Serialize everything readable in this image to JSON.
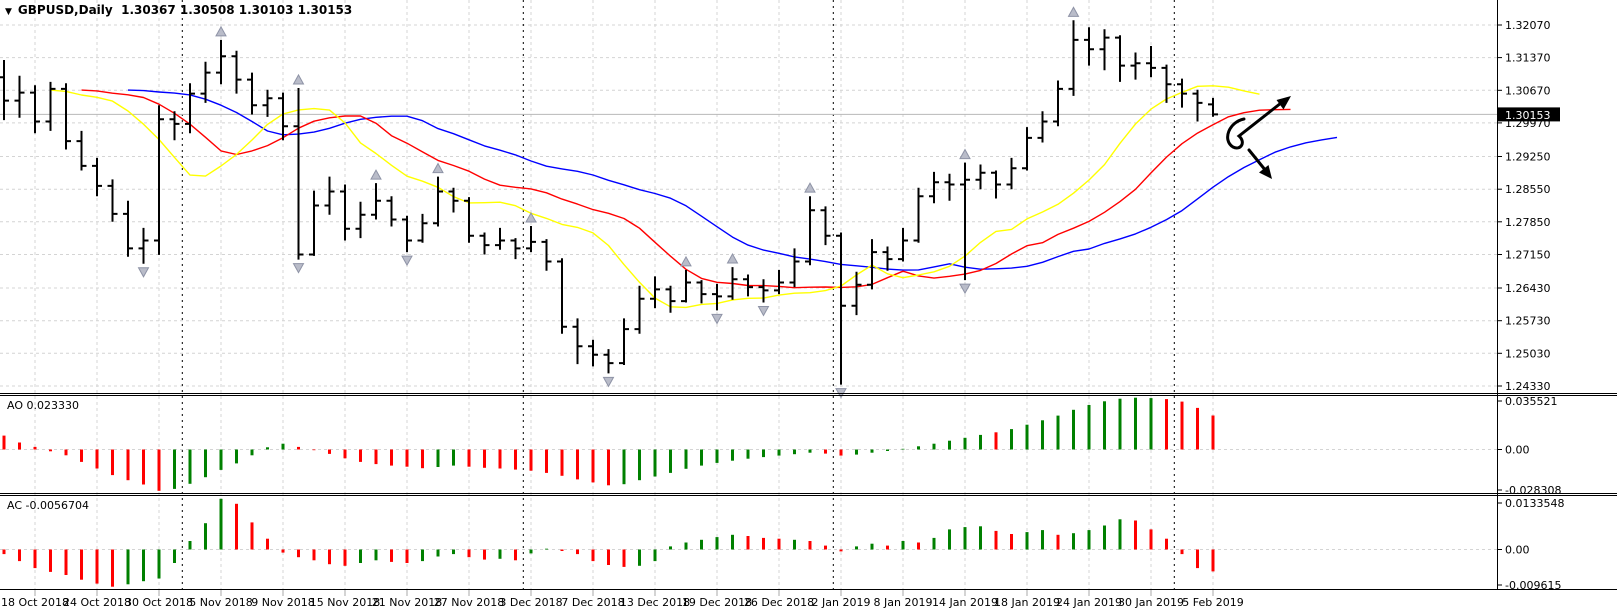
{
  "window": {
    "dropdown_icon": "▼",
    "symbol_period": "GBPUSD,Daily",
    "ohlc_text": "1.30367 1.30508 1.30103 1.30153"
  },
  "colors": {
    "background": "#ffffff",
    "bar": "#000000",
    "grid": "#d4d4d4",
    "month_line": "#000000",
    "current_price_line": "#b8b8b8",
    "badge_bg": "#000000",
    "badge_text": "#ffffff",
    "hist_up": "#008000",
    "hist_down": "#ff0000",
    "fractal": "#b9bcc9",
    "annotation": "#000000"
  },
  "chart_data": {
    "type": "ohlc-bar",
    "symbol": "GBPUSD",
    "timeframe": "Daily",
    "current_bar": {
      "open": 1.30367,
      "high": 1.30508,
      "low": 1.30103,
      "close": 1.30153
    },
    "price_axis": {
      "labels": [
        "1.32070",
        "1.31370",
        "1.30670",
        "1.29970",
        "1.29250",
        "1.28550",
        "1.27850",
        "1.27150",
        "1.26430",
        "1.25730",
        "1.25030",
        "1.24330"
      ],
      "current_label": "1.30153",
      "max": 1.3207,
      "min": 1.2433
    },
    "date_labels": [
      "18 Oct 2018",
      "24 Oct 2018",
      "30 Oct 2018",
      "5 Nov 2018",
      "9 Nov 2018",
      "15 Nov 2018",
      "21 Nov 2018",
      "27 Nov 2018",
      "3 Dec 2018",
      "7 Dec 2018",
      "13 Dec 2018",
      "19 Dec 2018",
      "26 Dec 2018",
      "2 Jan 2019",
      "8 Jan 2019",
      "14 Jan 2019",
      "18 Jan 2019",
      "24 Jan 2019",
      "30 Jan 2019",
      "5 Feb 2019"
    ],
    "first_label_bar_index": 2,
    "bars_per_label": 4,
    "month_separator_positions": [
      11.5,
      33.5,
      53.5,
      75.5
    ],
    "bars": [
      [
        1.3095,
        1.3132,
        1.3003,
        1.3045
      ],
      [
        1.3045,
        1.3098,
        1.3008,
        1.3062
      ],
      [
        1.3062,
        1.3078,
        1.2975,
        1.3
      ],
      [
        1.3,
        1.3085,
        1.298,
        1.307
      ],
      [
        1.307,
        1.3082,
        1.294,
        1.2958
      ],
      [
        1.2958,
        1.298,
        1.2895,
        1.2905
      ],
      [
        1.2905,
        1.2922,
        1.284,
        1.2862
      ],
      [
        1.2862,
        1.2876,
        1.2785,
        1.2802
      ],
      [
        1.2802,
        1.283,
        1.271,
        1.2728
      ],
      [
        1.2728,
        1.2772,
        1.2695,
        1.2745
      ],
      [
        1.2745,
        1.3035,
        1.2714,
        1.3005
      ],
      [
        1.3005,
        1.3022,
        1.296,
        1.2995
      ],
      [
        1.2995,
        1.3082,
        1.2975,
        1.306
      ],
      [
        1.306,
        1.3128,
        1.304,
        1.3105
      ],
      [
        1.3105,
        1.3175,
        1.308,
        1.314
      ],
      [
        1.314,
        1.3152,
        1.306,
        1.309
      ],
      [
        1.309,
        1.3105,
        1.3015,
        1.3035
      ],
      [
        1.3035,
        1.3068,
        1.301,
        1.305
      ],
      [
        1.305,
        1.3062,
        1.296,
        1.299
      ],
      [
        1.299,
        1.3072,
        1.2704,
        1.2715
      ],
      [
        1.2715,
        1.2852,
        1.2712,
        1.282
      ],
      [
        1.282,
        1.2882,
        1.28,
        1.285
      ],
      [
        1.285,
        1.2865,
        1.2745,
        1.277
      ],
      [
        1.277,
        1.2828,
        1.275,
        1.28
      ],
      [
        1.28,
        1.2868,
        1.279,
        1.283
      ],
      [
        1.283,
        1.284,
        1.2775,
        1.279
      ],
      [
        1.279,
        1.2798,
        1.272,
        1.2745
      ],
      [
        1.2745,
        1.2802,
        1.274,
        1.2782
      ],
      [
        1.2782,
        1.2882,
        1.2775,
        1.285
      ],
      [
        1.285,
        1.2858,
        1.2805,
        1.283
      ],
      [
        1.283,
        1.2838,
        1.274,
        1.2755
      ],
      [
        1.2755,
        1.2762,
        1.2715,
        1.2735
      ],
      [
        1.2735,
        1.2772,
        1.2725,
        1.2745
      ],
      [
        1.2745,
        1.275,
        1.2705,
        1.2728
      ],
      [
        1.2728,
        1.2776,
        1.272,
        1.2742
      ],
      [
        1.2742,
        1.2748,
        1.268,
        1.27
      ],
      [
        1.27,
        1.2707,
        1.2545,
        1.256
      ],
      [
        1.256,
        1.2578,
        1.248,
        1.2518
      ],
      [
        1.2518,
        1.2532,
        1.2475,
        1.25
      ],
      [
        1.25,
        1.2512,
        1.246,
        1.2482
      ],
      [
        1.2482,
        1.2578,
        1.2478,
        1.2555
      ],
      [
        1.2555,
        1.2648,
        1.2545,
        1.262
      ],
      [
        1.262,
        1.2668,
        1.26,
        1.264
      ],
      [
        1.264,
        1.2648,
        1.259,
        1.2615
      ],
      [
        1.2615,
        1.2682,
        1.2612,
        1.2655
      ],
      [
        1.2655,
        1.266,
        1.261,
        1.263
      ],
      [
        1.263,
        1.2652,
        1.2595,
        1.2625
      ],
      [
        1.2625,
        1.2688,
        1.2618,
        1.2662
      ],
      [
        1.2662,
        1.2672,
        1.2625,
        1.2645
      ],
      [
        1.2645,
        1.2662,
        1.2612,
        1.2638
      ],
      [
        1.2638,
        1.2682,
        1.263,
        1.2655
      ],
      [
        1.2655,
        1.2728,
        1.2645,
        1.27
      ],
      [
        1.27,
        1.284,
        1.2692,
        1.281
      ],
      [
        1.281,
        1.2818,
        1.2735,
        1.2755
      ],
      [
        1.2755,
        1.2762,
        1.2436,
        1.2605
      ],
      [
        1.2605,
        1.2678,
        1.2585,
        1.265
      ],
      [
        1.265,
        1.2748,
        1.264,
        1.272
      ],
      [
        1.272,
        1.2732,
        1.268,
        1.2705
      ],
      [
        1.2705,
        1.2772,
        1.27,
        1.2745
      ],
      [
        1.2745,
        1.2858,
        1.274,
        1.284
      ],
      [
        1.284,
        1.2892,
        1.2825,
        1.287
      ],
      [
        1.287,
        1.2888,
        1.283,
        1.2865
      ],
      [
        1.2865,
        1.2912,
        1.266,
        1.2875
      ],
      [
        1.2875,
        1.2908,
        1.2855,
        1.289
      ],
      [
        1.289,
        1.2895,
        1.2835,
        1.2865
      ],
      [
        1.2865,
        1.2922,
        1.2855,
        1.29
      ],
      [
        1.29,
        1.2988,
        1.2895,
        1.2965
      ],
      [
        1.2965,
        1.3022,
        1.2955,
        1.3
      ],
      [
        1.3,
        1.3088,
        1.299,
        1.307
      ],
      [
        1.307,
        1.3217,
        1.3055,
        1.3175
      ],
      [
        1.3175,
        1.3202,
        1.312,
        1.3155
      ],
      [
        1.3155,
        1.3198,
        1.311,
        1.318
      ],
      [
        1.318,
        1.3185,
        1.3085,
        1.312
      ],
      [
        1.312,
        1.3148,
        1.309,
        1.3125
      ],
      [
        1.3125,
        1.3162,
        1.3095,
        1.3115
      ],
      [
        1.3115,
        1.3122,
        1.304,
        1.308
      ],
      [
        1.308,
        1.3092,
        1.303,
        1.306
      ],
      [
        1.306,
        1.3068,
        1.3,
        1.304
      ],
      [
        1.30367,
        1.30508,
        1.30103,
        1.30153
      ]
    ],
    "fractals_up": [
      14,
      19,
      24,
      28,
      34,
      44,
      47,
      52,
      62,
      69
    ],
    "fractals_down": [
      9,
      19,
      26,
      39,
      46,
      49,
      54,
      62
    ],
    "alligator": [
      {
        "name": "jaw",
        "period": 13,
        "shift": 8,
        "color": "#0000ff"
      },
      {
        "name": "teeth",
        "period": 8,
        "shift": 5,
        "color": "#ff0000"
      },
      {
        "name": "lips",
        "period": 5,
        "shift": 3,
        "color": "#ffff00"
      }
    ],
    "ao": {
      "label": "AO",
      "value_label": "0.023330",
      "axis_labels": [
        "0.035521",
        "0.00",
        "-0.028308"
      ],
      "values": [
        [
          0.0095,
          "r"
        ],
        [
          0.0048,
          "r"
        ],
        [
          0.0018,
          "r"
        ],
        [
          -0.0012,
          "r"
        ],
        [
          -0.004,
          "r"
        ],
        [
          -0.0085,
          "r"
        ],
        [
          -0.013,
          "r"
        ],
        [
          -0.0175,
          "r"
        ],
        [
          -0.021,
          "r"
        ],
        [
          -0.024,
          "r"
        ],
        [
          -0.0283,
          "r"
        ],
        [
          -0.027,
          "g"
        ],
        [
          -0.0235,
          "g"
        ],
        [
          -0.019,
          "g"
        ],
        [
          -0.014,
          "g"
        ],
        [
          -0.0095,
          "g"
        ],
        [
          -0.004,
          "g"
        ],
        [
          0.0015,
          "g"
        ],
        [
          0.004,
          "g"
        ],
        [
          0.0018,
          "r"
        ],
        [
          -0.0005,
          "r"
        ],
        [
          -0.003,
          "r"
        ],
        [
          -0.006,
          "r"
        ],
        [
          -0.0085,
          "r"
        ],
        [
          -0.01,
          "r"
        ],
        [
          -0.011,
          "r"
        ],
        [
          -0.0118,
          "r"
        ],
        [
          -0.0128,
          "r"
        ],
        [
          -0.012,
          "g"
        ],
        [
          -0.011,
          "g"
        ],
        [
          -0.0118,
          "r"
        ],
        [
          -0.0125,
          "r"
        ],
        [
          -0.013,
          "r"
        ],
        [
          -0.0138,
          "r"
        ],
        [
          -0.0145,
          "r"
        ],
        [
          -0.016,
          "r"
        ],
        [
          -0.018,
          "r"
        ],
        [
          -0.0205,
          "r"
        ],
        [
          -0.0225,
          "r"
        ],
        [
          -0.0245,
          "r"
        ],
        [
          -0.0238,
          "g"
        ],
        [
          -0.021,
          "g"
        ],
        [
          -0.0185,
          "g"
        ],
        [
          -0.016,
          "g"
        ],
        [
          -0.0132,
          "g"
        ],
        [
          -0.011,
          "g"
        ],
        [
          -0.0092,
          "g"
        ],
        [
          -0.0077,
          "g"
        ],
        [
          -0.0063,
          "g"
        ],
        [
          -0.0052,
          "g"
        ],
        [
          -0.0042,
          "g"
        ],
        [
          -0.0032,
          "g"
        ],
        [
          -0.0022,
          "g"
        ],
        [
          -0.0028,
          "r"
        ],
        [
          -0.0042,
          "r"
        ],
        [
          -0.0035,
          "g"
        ],
        [
          -0.0022,
          "g"
        ],
        [
          -0.001,
          "g"
        ],
        [
          0.0005,
          "g"
        ],
        [
          0.0022,
          "g"
        ],
        [
          0.004,
          "g"
        ],
        [
          0.006,
          "g"
        ],
        [
          0.008,
          "g"
        ],
        [
          0.01,
          "g"
        ],
        [
          0.0118,
          "r"
        ],
        [
          0.014,
          "g"
        ],
        [
          0.017,
          "g"
        ],
        [
          0.02,
          "g"
        ],
        [
          0.0232,
          "g"
        ],
        [
          0.0272,
          "g"
        ],
        [
          0.0305,
          "g"
        ],
        [
          0.033,
          "g"
        ],
        [
          0.0348,
          "g"
        ],
        [
          0.0355,
          "g"
        ],
        [
          0.0352,
          "g"
        ],
        [
          0.0345,
          "r"
        ],
        [
          0.0328,
          "r"
        ],
        [
          0.0285,
          "r"
        ],
        [
          0.0233,
          "r"
        ]
      ]
    },
    "ac": {
      "label": "AC",
      "value_label": "-0.0056704",
      "axis_labels": [
        "0.0133548",
        "0.00",
        "-0.009615"
      ],
      "values": [
        [
          -0.0012,
          "r"
        ],
        [
          -0.003,
          "r"
        ],
        [
          -0.0048,
          "r"
        ],
        [
          -0.0058,
          "r"
        ],
        [
          -0.0066,
          "r"
        ],
        [
          -0.0078,
          "r"
        ],
        [
          -0.0088,
          "r"
        ],
        [
          -0.0096,
          "r"
        ],
        [
          -0.009,
          "g"
        ],
        [
          -0.0082,
          "g"
        ],
        [
          -0.0075,
          "g"
        ],
        [
          -0.0035,
          "g"
        ],
        [
          0.0022,
          "g"
        ],
        [
          0.0068,
          "g"
        ],
        [
          0.0131,
          "g"
        ],
        [
          0.0118,
          "r"
        ],
        [
          0.007,
          "r"
        ],
        [
          0.0028,
          "r"
        ],
        [
          -0.0008,
          "r"
        ],
        [
          -0.002,
          "r"
        ],
        [
          -0.0028,
          "r"
        ],
        [
          -0.0038,
          "r"
        ],
        [
          -0.0042,
          "r"
        ],
        [
          -0.0035,
          "g"
        ],
        [
          -0.0028,
          "g"
        ],
        [
          -0.0032,
          "r"
        ],
        [
          -0.0035,
          "r"
        ],
        [
          -0.003,
          "g"
        ],
        [
          -0.0018,
          "g"
        ],
        [
          -0.0012,
          "g"
        ],
        [
          -0.002,
          "r"
        ],
        [
          -0.0026,
          "r"
        ],
        [
          -0.0024,
          "g"
        ],
        [
          -0.0028,
          "r"
        ],
        [
          -0.001,
          "g"
        ],
        [
          0.0002,
          "g"
        ],
        [
          -0.0004,
          "r"
        ],
        [
          -0.0012,
          "r"
        ],
        [
          -0.003,
          "r"
        ],
        [
          -0.004,
          "r"
        ],
        [
          -0.0045,
          "r"
        ],
        [
          -0.0042,
          "g"
        ],
        [
          -0.003,
          "g"
        ],
        [
          0.0008,
          "g"
        ],
        [
          0.0018,
          "g"
        ],
        [
          0.0025,
          "g"
        ],
        [
          0.0032,
          "g"
        ],
        [
          0.0038,
          "g"
        ],
        [
          0.0035,
          "r"
        ],
        [
          0.003,
          "r"
        ],
        [
          0.0028,
          "r"
        ],
        [
          0.0025,
          "g"
        ],
        [
          0.0022,
          "r"
        ],
        [
          0.001,
          "r"
        ],
        [
          -0.0005,
          "r"
        ],
        [
          0.0008,
          "g"
        ],
        [
          0.0015,
          "g"
        ],
        [
          0.001,
          "r"
        ],
        [
          0.0022,
          "g"
        ],
        [
          0.0018,
          "r"
        ],
        [
          0.003,
          "g"
        ],
        [
          0.0052,
          "g"
        ],
        [
          0.0058,
          "g"
        ],
        [
          0.006,
          "g"
        ],
        [
          0.0048,
          "r"
        ],
        [
          0.004,
          "r"
        ],
        [
          0.0045,
          "g"
        ],
        [
          0.005,
          "g"
        ],
        [
          0.0038,
          "r"
        ],
        [
          0.0042,
          "g"
        ],
        [
          0.005,
          "g"
        ],
        [
          0.0062,
          "g"
        ],
        [
          0.0078,
          "g"
        ],
        [
          0.0075,
          "r"
        ],
        [
          0.0052,
          "r"
        ],
        [
          0.0028,
          "r"
        ],
        [
          -0.0012,
          "r"
        ],
        [
          -0.0048,
          "r"
        ],
        [
          -0.00567,
          "r"
        ]
      ]
    },
    "annotations": [
      {
        "kind": "arrow-up-right",
        "curl": true
      },
      {
        "kind": "arrow-down-right",
        "curl": false
      }
    ]
  }
}
